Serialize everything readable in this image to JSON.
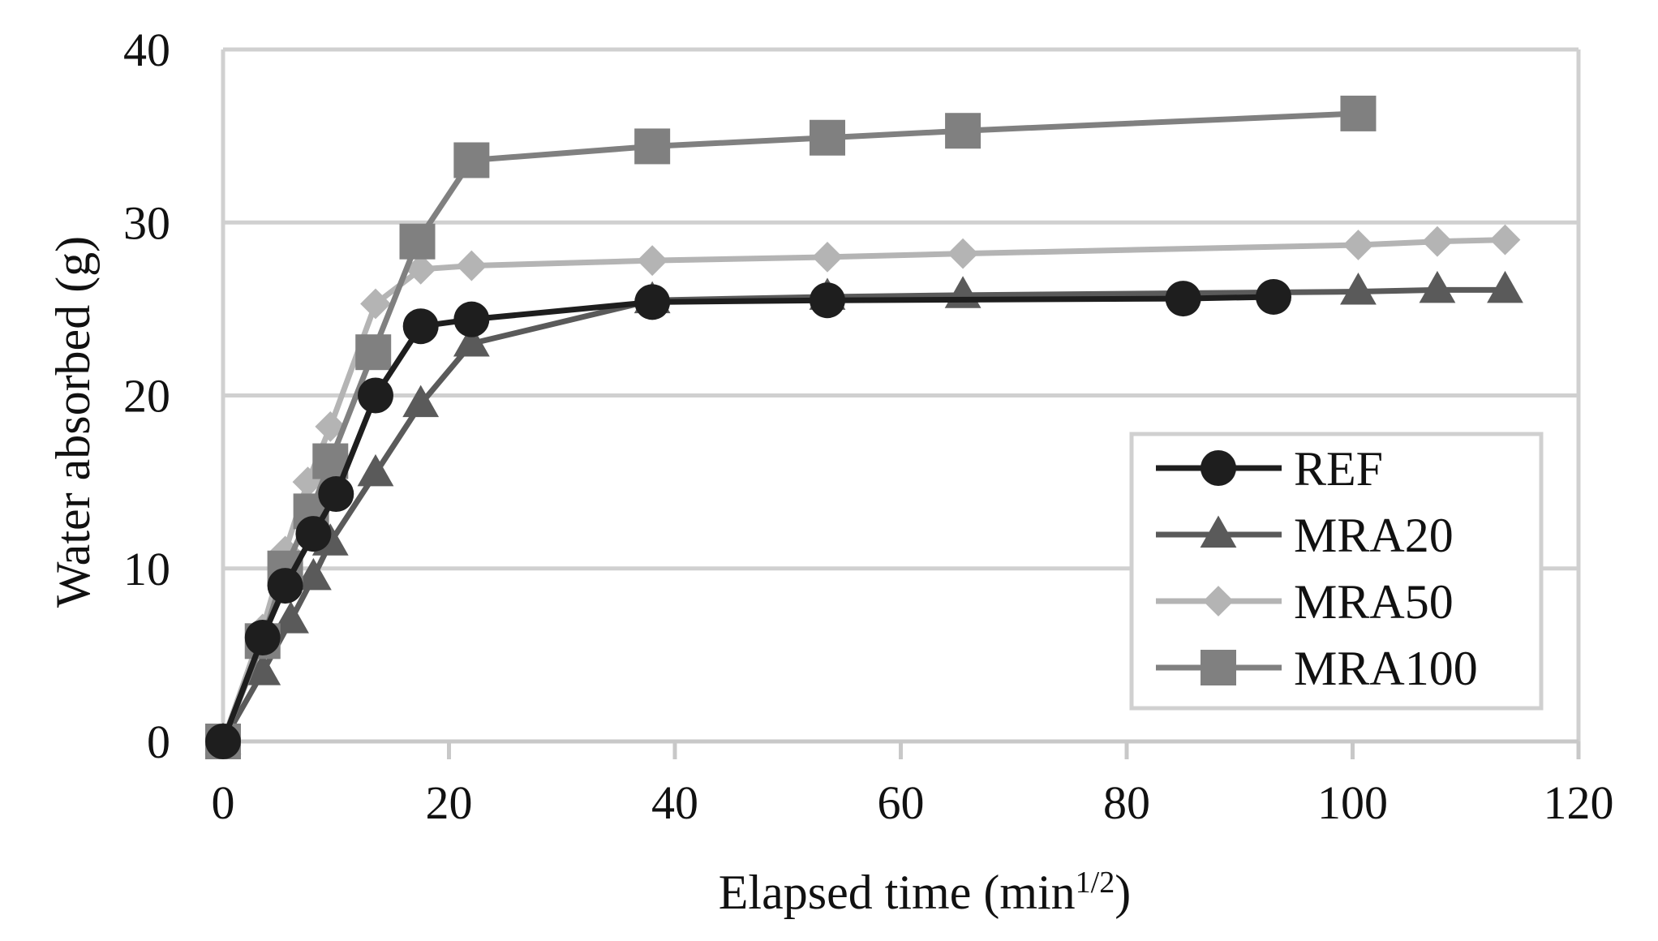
{
  "chart_data": {
    "type": "line",
    "title": "",
    "xlabel": "Elapsed time (min",
    "xlabel_sup": "1/2",
    "xlabel_close": ")",
    "ylabel": "Water absorbed (g)",
    "xlim": [
      0,
      120
    ],
    "ylim": [
      0,
      40
    ],
    "xticks": [
      0,
      20,
      40,
      60,
      80,
      100,
      120
    ],
    "yticks": [
      0,
      10,
      20,
      30,
      40
    ],
    "xtick_labels": [
      "0",
      "20",
      "40",
      "60",
      "80",
      "100",
      "120"
    ],
    "ytick_labels": [
      "0",
      "10",
      "20",
      "30",
      "40"
    ],
    "grid": "horizontal",
    "legend_position": "bottom-right",
    "series": [
      {
        "name": "REF",
        "marker": "circle",
        "color": "#1e1e1e",
        "x": [
          0,
          3.5,
          5.5,
          8,
          10,
          13.5,
          17.5,
          22,
          38,
          53.5,
          85,
          93
        ],
        "y": [
          0,
          6,
          9,
          12,
          14.3,
          20,
          24,
          24.4,
          25.4,
          25.5,
          25.6,
          25.7
        ]
      },
      {
        "name": "MRA20",
        "marker": "triangle",
        "color": "#5a5a5a",
        "x": [
          0,
          3.5,
          6,
          8,
          9.5,
          13.5,
          17.5,
          22,
          38,
          53.5,
          65.5,
          100.5,
          107.5,
          113.5
        ],
        "y": [
          0,
          4,
          7,
          9.5,
          11.5,
          15.5,
          19.5,
          23,
          25.5,
          25.7,
          25.8,
          26,
          26.1,
          26.1
        ]
      },
      {
        "name": "MRA50",
        "marker": "diamond",
        "color": "#b4b4b4",
        "x": [
          0,
          3.5,
          5.5,
          7.5,
          9.5,
          13.5,
          17.5,
          22,
          38,
          53.5,
          65.5,
          100.5,
          107.5,
          113.5
        ],
        "y": [
          0,
          6.5,
          11,
          15,
          18.2,
          25.3,
          27.3,
          27.5,
          27.8,
          28,
          28.2,
          28.7,
          28.9,
          29
        ]
      },
      {
        "name": "MRA100",
        "marker": "square",
        "color": "#808080",
        "x": [
          0,
          3.5,
          5.5,
          7.8,
          9.5,
          13.3,
          17.2,
          22,
          38,
          53.5,
          65.5,
          100.5
        ],
        "y": [
          0,
          5.8,
          10,
          13.3,
          16.2,
          22.5,
          28.9,
          33.6,
          34.4,
          34.9,
          35.3,
          36.3
        ]
      }
    ]
  }
}
